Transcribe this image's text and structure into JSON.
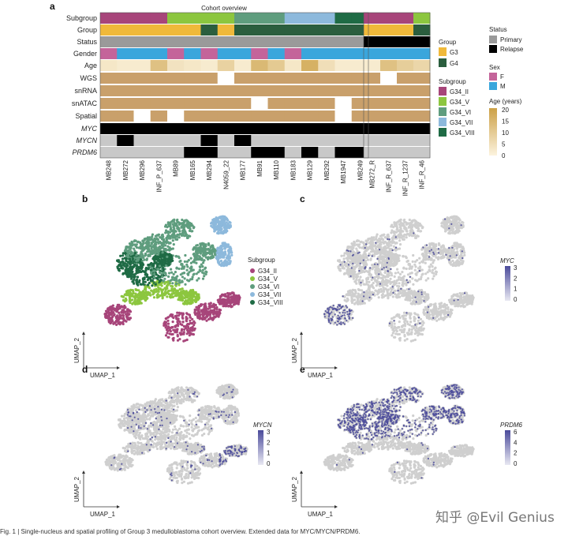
{
  "figure": {
    "panel_a": {
      "letter": "a",
      "title": "Cohort overview",
      "track_labels": [
        "Subgroup",
        "Group",
        "Status",
        "Gender",
        "Age",
        "WGS",
        "snRNA",
        "snATAC",
        "Spatial",
        "MYC",
        "MYCN",
        "PRDM6"
      ],
      "primary_samples": [
        "MB248",
        "MB272",
        "MB296",
        "INF_P_637",
        "MB89",
        "MB165",
        "MB294",
        "N4059_22",
        "MB177",
        "MB91",
        "MB110",
        "MB183",
        "MB129",
        "MB292",
        "MB1947",
        "MB249"
      ],
      "relapse_samples": [
        "MB272_R",
        "INF_R_637",
        "INF_R_1237",
        "INF_R_46"
      ],
      "legend": {
        "status": {
          "title": "Status",
          "items": [
            {
              "label": "Primary",
              "color": "#9a9a9a"
            },
            {
              "label": "Relapse",
              "color": "#000000"
            }
          ]
        },
        "group": {
          "title": "Group",
          "items": [
            {
              "label": "G3",
              "color": "#f0b93a"
            },
            {
              "label": "G4",
              "color": "#2b5e3e"
            }
          ]
        },
        "sex": {
          "title": "Sex",
          "items": [
            {
              "label": "F",
              "color": "#c4649a"
            },
            {
              "label": "M",
              "color": "#3aa6dc"
            }
          ]
        },
        "subgroup": {
          "title": "Subgroup",
          "items": [
            {
              "label": "G34_II",
              "color": "#a7457a"
            },
            {
              "label": "G34_V",
              "color": "#8cc63f"
            },
            {
              "label": "G34_VI",
              "color": "#5f9d7e"
            },
            {
              "label": "G34_VII",
              "color": "#8db9dc"
            },
            {
              "label": "G34_VIII",
              "color": "#1f6b45"
            }
          ]
        },
        "age": {
          "title": "Age (years)",
          "ticks": [
            "20",
            "15",
            "10",
            "5",
            "0"
          ]
        }
      }
    },
    "panel_b": {
      "letter": "b",
      "legend_title": "Subgroup",
      "legend": [
        "G34_II",
        "G34_V",
        "G34_VI",
        "G34_VII",
        "G34_VIII"
      ],
      "xlabel": "UMAP_1",
      "ylabel": "UMAP_2"
    },
    "panel_c": {
      "letter": "c",
      "gene": "MYC",
      "ticks": [
        "3",
        "2",
        "1",
        "0"
      ],
      "xlabel": "UMAP_1",
      "ylabel": "UMAP_2"
    },
    "panel_d": {
      "letter": "d",
      "gene": "MYCN",
      "ticks": [
        "3",
        "2",
        "1",
        "0"
      ],
      "xlabel": "UMAP_1",
      "ylabel": "UMAP_2"
    },
    "panel_e": {
      "letter": "e",
      "gene": "PRDM6",
      "ticks": [
        "6",
        "4",
        "2",
        "0"
      ],
      "xlabel": "UMAP_1",
      "ylabel": "UMAP_2"
    }
  },
  "colors": {
    "subgroup": {
      "G34_II": "#a7457a",
      "G34_V": "#8cc63f",
      "G34_VI": "#5f9d7e",
      "G34_VII": "#8db9dc",
      "G34_VIII": "#1f6b45"
    },
    "group": {
      "G3": "#f0b93a",
      "G4": "#2b5e3e"
    },
    "status": {
      "Primary": "#9a9a9a",
      "Relapse": "#000000"
    },
    "sex": {
      "F": "#c4649a",
      "M": "#3aa6dc"
    },
    "assay_present": "#c9a06b",
    "cnv_present": "#000000",
    "cnv_absent": "#c8c8c8",
    "umap_grey": "#cfcfcf",
    "expr_high": "#4b4b9b"
  },
  "tracks": {
    "subgroup": [
      "G34_II",
      "G34_II",
      "G34_II",
      "G34_II",
      "G34_V",
      "G34_V",
      "G34_V",
      "G34_V",
      "G34_VI",
      "G34_VI",
      "G34_VI",
      "G34_VII",
      "G34_VII",
      "G34_VII",
      "G34_VIII",
      "G34_VIII",
      "G34_II",
      "G34_II",
      "G34_II",
      "G34_V"
    ],
    "group": [
      "G3",
      "G3",
      "G3",
      "G3",
      "G3",
      "G3",
      "G4",
      "G3",
      "G4",
      "G4",
      "G4",
      "G4",
      "G4",
      "G4",
      "G4",
      "G4",
      "G3",
      "G3",
      "G3",
      "G4"
    ],
    "status": [
      "Primary",
      "Primary",
      "Primary",
      "Primary",
      "Primary",
      "Primary",
      "Primary",
      "Primary",
      "Primary",
      "Primary",
      "Primary",
      "Primary",
      "Primary",
      "Primary",
      "Primary",
      "Primary",
      "Relapse",
      "Relapse",
      "Relapse",
      "Relapse"
    ],
    "gender": [
      "F",
      "M",
      "M",
      "M",
      "F",
      "M",
      "F",
      "M",
      "M",
      "F",
      "M",
      "F",
      "M",
      "M",
      "M",
      "M",
      "M",
      "M",
      "M",
      "M"
    ],
    "age": [
      3,
      2,
      2,
      12,
      4,
      3,
      2,
      8,
      2,
      14,
      10,
      3,
      16,
      5,
      2,
      2,
      2,
      12,
      9,
      7
    ],
    "wgs": [
      1,
      1,
      1,
      1,
      1,
      1,
      1,
      0,
      1,
      1,
      1,
      1,
      1,
      1,
      1,
      1,
      1,
      0,
      1,
      1
    ],
    "snrna": [
      1,
      1,
      1,
      1,
      1,
      1,
      1,
      1,
      1,
      1,
      1,
      1,
      1,
      1,
      1,
      1,
      1,
      1,
      1,
      1
    ],
    "snatac": [
      1,
      1,
      1,
      1,
      1,
      1,
      1,
      1,
      1,
      0,
      1,
      1,
      1,
      1,
      0,
      1,
      1,
      1,
      1,
      1
    ],
    "spatial": [
      1,
      1,
      0,
      1,
      0,
      1,
      1,
      1,
      1,
      1,
      1,
      1,
      1,
      1,
      0,
      1,
      1,
      1,
      1,
      1
    ],
    "myc": [
      1,
      1,
      1,
      1,
      1,
      1,
      1,
      1,
      1,
      1,
      1,
      1,
      1,
      1,
      1,
      1,
      1,
      1,
      1,
      1
    ],
    "mycn": [
      0,
      1,
      0,
      0,
      0,
      0,
      1,
      0,
      1,
      0,
      0,
      0,
      0,
      0,
      0,
      0,
      0,
      0,
      0,
      0
    ],
    "prdm6": [
      0,
      0,
      0,
      0,
      0,
      1,
      1,
      0,
      0,
      1,
      1,
      0,
      1,
      0,
      1,
      1,
      0,
      0,
      0,
      0
    ]
  },
  "watermark": "知乎 @Evil Genius",
  "caption": "Fig. 1 | Single-nucleus and spatial profiling of Group 3 medulloblastoma cohort overview. Extended data for MYC/MYCN/PRDM6."
}
